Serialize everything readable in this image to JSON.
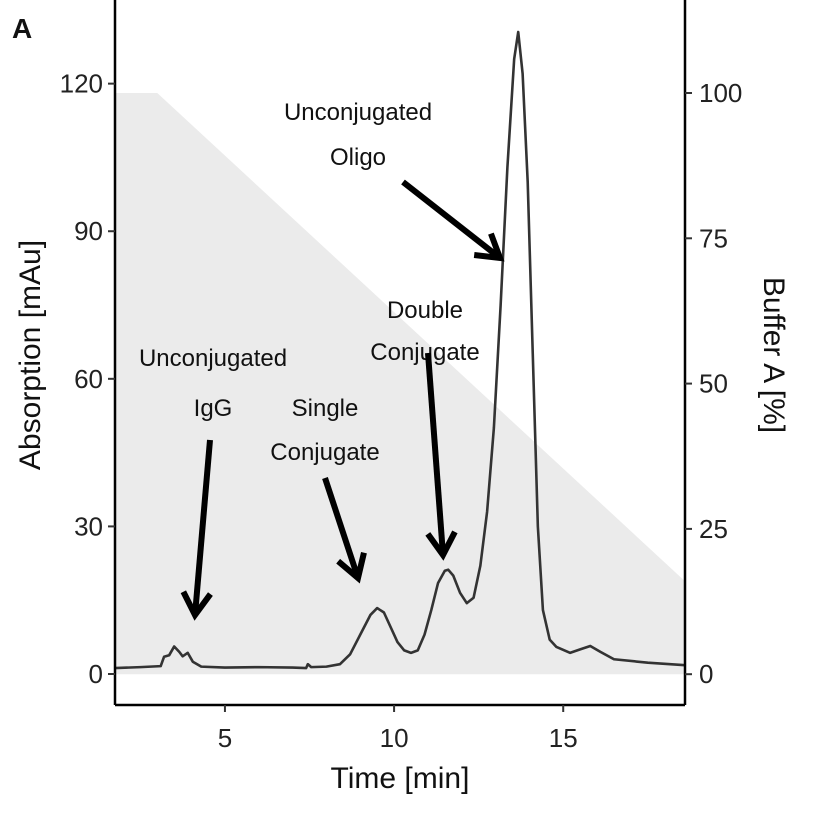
{
  "panel_label": "A",
  "chart_data": {
    "type": "line",
    "xlabel": "Time [min]",
    "ylabel": "Absorption [mAu]",
    "y2label": "Buffer A [%]",
    "xlim": [
      1.75,
      18.6
    ],
    "ylim": [
      -6.3,
      137
    ],
    "y2lim": [
      -5.3,
      116
    ],
    "xticks": [
      5,
      10,
      15
    ],
    "yticks": [
      0,
      30,
      60,
      90,
      120
    ],
    "y2ticks": [
      0,
      25,
      50,
      75,
      100
    ],
    "grid": false,
    "colors": {
      "trace": "#333333",
      "buffer_fill": "#ebebeb"
    },
    "series": [
      {
        "role": "absorption",
        "points": [
          [
            1.75,
            1.2
          ],
          [
            2.5,
            1.4
          ],
          [
            3.1,
            1.6
          ],
          [
            3.2,
            3.5
          ],
          [
            3.35,
            3.8
          ],
          [
            3.5,
            5.6
          ],
          [
            3.65,
            4.5
          ],
          [
            3.75,
            3.6
          ],
          [
            3.9,
            4.3
          ],
          [
            4.05,
            2.5
          ],
          [
            4.3,
            1.5
          ],
          [
            5,
            1.3
          ],
          [
            6,
            1.4
          ],
          [
            7,
            1.3
          ],
          [
            7.4,
            1.2
          ],
          [
            7.45,
            2
          ],
          [
            7.55,
            1.4
          ],
          [
            8,
            1.5
          ],
          [
            8.4,
            2
          ],
          [
            8.7,
            4
          ],
          [
            9.0,
            8
          ],
          [
            9.3,
            12
          ],
          [
            9.5,
            13.4
          ],
          [
            9.7,
            12.5
          ],
          [
            9.9,
            9.5
          ],
          [
            10.1,
            6.5
          ],
          [
            10.3,
            4.8
          ],
          [
            10.5,
            4.3
          ],
          [
            10.7,
            4.8
          ],
          [
            10.9,
            8
          ],
          [
            11.1,
            13
          ],
          [
            11.3,
            18.5
          ],
          [
            11.5,
            21
          ],
          [
            11.6,
            21.2
          ],
          [
            11.75,
            20
          ],
          [
            11.95,
            16.5
          ],
          [
            12.15,
            14.4
          ],
          [
            12.35,
            15.5
          ],
          [
            12.55,
            22
          ],
          [
            12.75,
            33
          ],
          [
            12.95,
            50
          ],
          [
            13.15,
            75
          ],
          [
            13.35,
            103
          ],
          [
            13.55,
            125
          ],
          [
            13.67,
            130.5
          ],
          [
            13.8,
            122
          ],
          [
            13.95,
            100
          ],
          [
            14.1,
            65
          ],
          [
            14.25,
            30
          ],
          [
            14.4,
            13
          ],
          [
            14.6,
            7
          ],
          [
            14.8,
            5.5
          ],
          [
            15.2,
            4.3
          ],
          [
            15.5,
            5
          ],
          [
            15.8,
            5.7
          ],
          [
            16.1,
            4.5
          ],
          [
            16.5,
            3
          ],
          [
            17.5,
            2.3
          ],
          [
            18.6,
            1.8
          ]
        ]
      },
      {
        "role": "buffer_a_gradient",
        "axis": "right",
        "points": [
          [
            1.75,
            100
          ],
          [
            3.0,
            100
          ],
          [
            18.6,
            16
          ]
        ]
      }
    ],
    "annotations": [
      {
        "lines": [
          "Unconjugated",
          "Oligo"
        ],
        "target": [
          13.3,
          70
        ]
      },
      {
        "lines": [
          "Double",
          "Conjugate"
        ],
        "target": [
          11.5,
          24
        ]
      },
      {
        "lines": [
          "Unconjugated",
          "IgG"
        ],
        "target": [
          3.9,
          12
        ]
      },
      {
        "lines": [
          "Single",
          "Conjugate"
        ],
        "target": [
          9.0,
          19
        ]
      }
    ]
  }
}
